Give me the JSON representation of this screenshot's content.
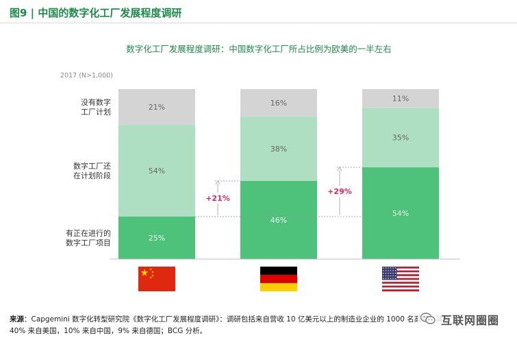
{
  "figure": {
    "title": "图9 | 中国的数字化工厂发展程度调研"
  },
  "chart_data": {
    "type": "bar",
    "stacked": true,
    "stack_mode": "percent",
    "title": "数字化工厂发展程度调研：中国数字化工厂所占比例为欧美的一半左右",
    "sample_note": "2017 (N>1,000)",
    "categories": [
      "中国",
      "德国",
      "美国"
    ],
    "series": [
      {
        "name": "有正在进行的数字工厂项目",
        "values": [
          25,
          46,
          54
        ],
        "labels": [
          "25%",
          "46%",
          "54%"
        ],
        "color": "#4ec27a"
      },
      {
        "name": "数字工厂还在计划阶段",
        "values": [
          54,
          38,
          35
        ],
        "labels": [
          "54%",
          "38%",
          "35%"
        ],
        "color": "#afdfc2"
      },
      {
        "name": "没有数字工厂计划",
        "values": [
          21,
          16,
          11
        ],
        "labels": [
          "21%",
          "16%",
          "11%"
        ],
        "color": "#d4d4d4"
      }
    ],
    "row_labels": [
      {
        "lines": [
          "有正在进行的",
          "数字工厂项目"
        ]
      },
      {
        "lines": [
          "数字工厂还",
          "在计划阶段"
        ]
      },
      {
        "lines": [
          "没有数字",
          "工厂计划"
        ]
      }
    ],
    "annotations": [
      {
        "text": "+21%",
        "from_category": 0,
        "to_category": 1,
        "from_value": 25,
        "to_value": 46,
        "color": "#e0245e"
      },
      {
        "text": "+29%",
        "from_category": 1,
        "to_category": 2,
        "from_value": 25,
        "to_value": 54,
        "color": "#e0245e"
      }
    ],
    "flags": [
      "china-flag",
      "germany-flag",
      "usa-flag"
    ],
    "ylim": [
      0,
      100
    ],
    "grid": false,
    "legend": "left-row-labels"
  },
  "source": {
    "label": "来源",
    "text": "：Capgemini 数字化转型研究院《数字化工厂发展程度调研》：调研包括来自营收 10 亿美元以上的制造业企业的 1000 名高管，其中",
    "text2": "40% 来自美国，10% 来自中国，9% 来自德国；BCG 分析。"
  },
  "watermark": {
    "text": "互联网圈圈",
    "icon": "wechat-icon"
  }
}
